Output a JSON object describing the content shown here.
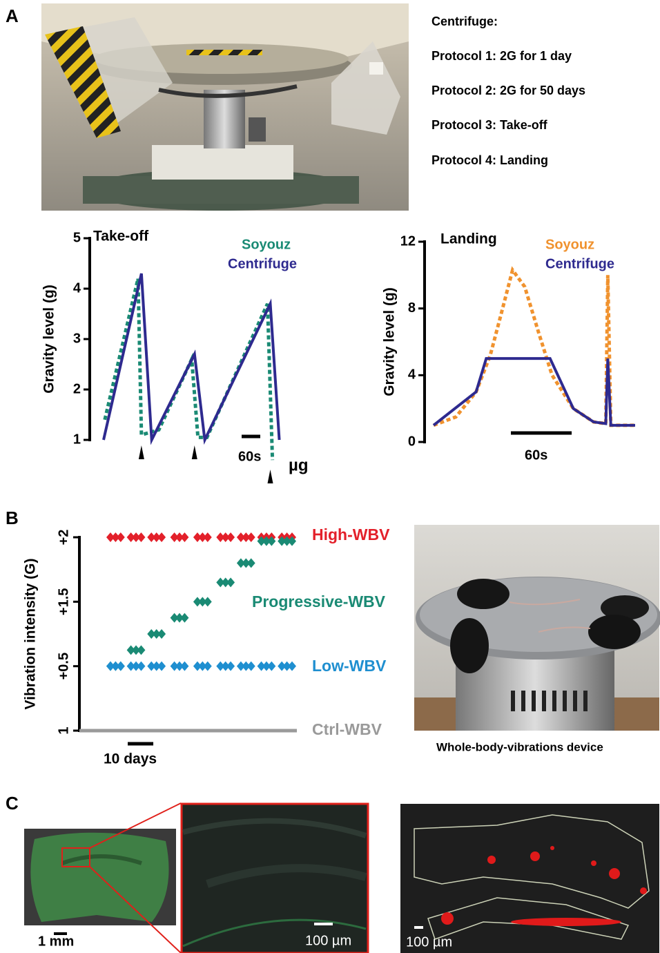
{
  "panel_labels": [
    "A",
    "B",
    "C"
  ],
  "centrifuge_protocols": {
    "heading": "Centrifuge:",
    "items": [
      "Protocol 1: 2G for 1 day",
      "Protocol 2: 2G for 50 days",
      "Protocol 3: Take-off",
      "Protocol 4: Landing"
    ]
  },
  "chart_data": [
    {
      "type": "line",
      "title": "Take-off",
      "y_label": "Gravity level (g)",
      "xlim": [
        0,
        567
      ],
      "ylim": [
        1,
        5
      ],
      "yticks": [
        1,
        2,
        3,
        4,
        5
      ],
      "series": [
        {
          "name": "Soyouz",
          "color": "#1a8a74",
          "dashed": true,
          "x": [
            4,
            111,
            122,
            178,
            284,
            304,
            333,
            528,
            544
          ],
          "values": [
            1.4,
            4.2,
            1.1,
            1.2,
            2.6,
            1.05,
            1.05,
            3.7,
            0.6
          ]
        },
        {
          "name": "Centrifuge",
          "color": "#2e2a8f",
          "dashed": false,
          "x": [
            0,
            122,
            155,
            293,
            326,
            537,
            566
          ],
          "values": [
            1,
            4.3,
            1,
            2.7,
            1,
            3.7,
            1
          ]
        }
      ],
      "scale_bar": {
        "value": 60,
        "label": "60s"
      },
      "microgravity": {
        "label": "µg",
        "x": [
          122,
          293,
          537
        ]
      }
    },
    {
      "type": "line",
      "title": "Landing",
      "y_label": "Gravity level (g)",
      "xlim": [
        0,
        199
      ],
      "ylim": [
        0,
        12
      ],
      "yticks": [
        0,
        4,
        8,
        12
      ],
      "series": [
        {
          "name": "Soyouz",
          "color": "#f0922e",
          "dashed": true,
          "x": [
            0,
            22,
            42,
            56,
            66,
            78,
            90,
            104,
            117,
            138,
            158,
            170,
            172,
            175,
            199
          ],
          "values": [
            1,
            1.5,
            3,
            5.2,
            7.5,
            10.3,
            9.3,
            6.5,
            4,
            2,
            1.2,
            1.1,
            10,
            1,
            1
          ]
        },
        {
          "name": "Centrifuge",
          "color": "#2e2a8f",
          "dashed": false,
          "x": [
            0,
            42,
            52,
            115,
            138,
            158,
            170,
            172,
            175,
            199
          ],
          "values": [
            1,
            3,
            5,
            5,
            2,
            1.2,
            1.1,
            5,
            1,
            1
          ]
        }
      ],
      "scale_bar": {
        "value": 60,
        "label": "60s"
      }
    },
    {
      "type": "scatter",
      "y_label": "Vibration intensity (G)",
      "xlim": [
        0,
        71
      ],
      "yticks": [
        {
          "value": 2,
          "label": "+2"
        },
        {
          "value": 1.5,
          "label": "+1.5"
        },
        {
          "value": 0.5,
          "label": "+0.5"
        }
      ],
      "y_baseline_label": "1",
      "x": [
        0,
        2,
        4,
        8,
        10,
        12,
        16,
        18,
        20,
        25,
        27,
        29,
        34,
        36,
        38,
        43,
        45,
        47,
        51,
        53,
        55,
        59,
        61,
        63,
        67,
        69,
        71
      ],
      "series": [
        {
          "name": "High-WBV",
          "color": "#e3202a",
          "values": [
            2,
            2,
            2,
            2,
            2,
            2,
            2,
            2,
            2,
            2,
            2,
            2,
            2,
            2,
            2,
            2,
            2,
            2,
            2,
            2,
            2,
            2,
            2,
            2,
            2,
            2,
            2
          ]
        },
        {
          "name": "Progressive-WBV",
          "color": "#1a8a74",
          "values": [
            0.5,
            0.5,
            0.5,
            0.75,
            0.75,
            0.75,
            1.0,
            1.0,
            1.0,
            1.25,
            1.25,
            1.25,
            1.5,
            1.5,
            1.5,
            1.65,
            1.65,
            1.65,
            1.8,
            1.8,
            1.8,
            1.97,
            1.97,
            1.97,
            1.97,
            1.97,
            1.97
          ]
        },
        {
          "name": "Low-WBV",
          "color": "#1f8fd0",
          "values": [
            0.5,
            0.5,
            0.5,
            0.5,
            0.5,
            0.5,
            0.5,
            0.5,
            0.5,
            0.5,
            0.5,
            0.5,
            0.5,
            0.5,
            0.5,
            0.5,
            0.5,
            0.5,
            0.5,
            0.5,
            0.5,
            0.5,
            0.5,
            0.5,
            0.5,
            0.5,
            0.5
          ]
        },
        {
          "name": "Ctrl-WBV",
          "color": "#9a9a9a"
        }
      ],
      "scale_bar": {
        "value": 10,
        "label": "10 days"
      }
    }
  ],
  "wbv_device_caption": "Whole-body-vibrations device",
  "histology_scale_bars": [
    "1 mm",
    "100 µm",
    "100 µm"
  ]
}
